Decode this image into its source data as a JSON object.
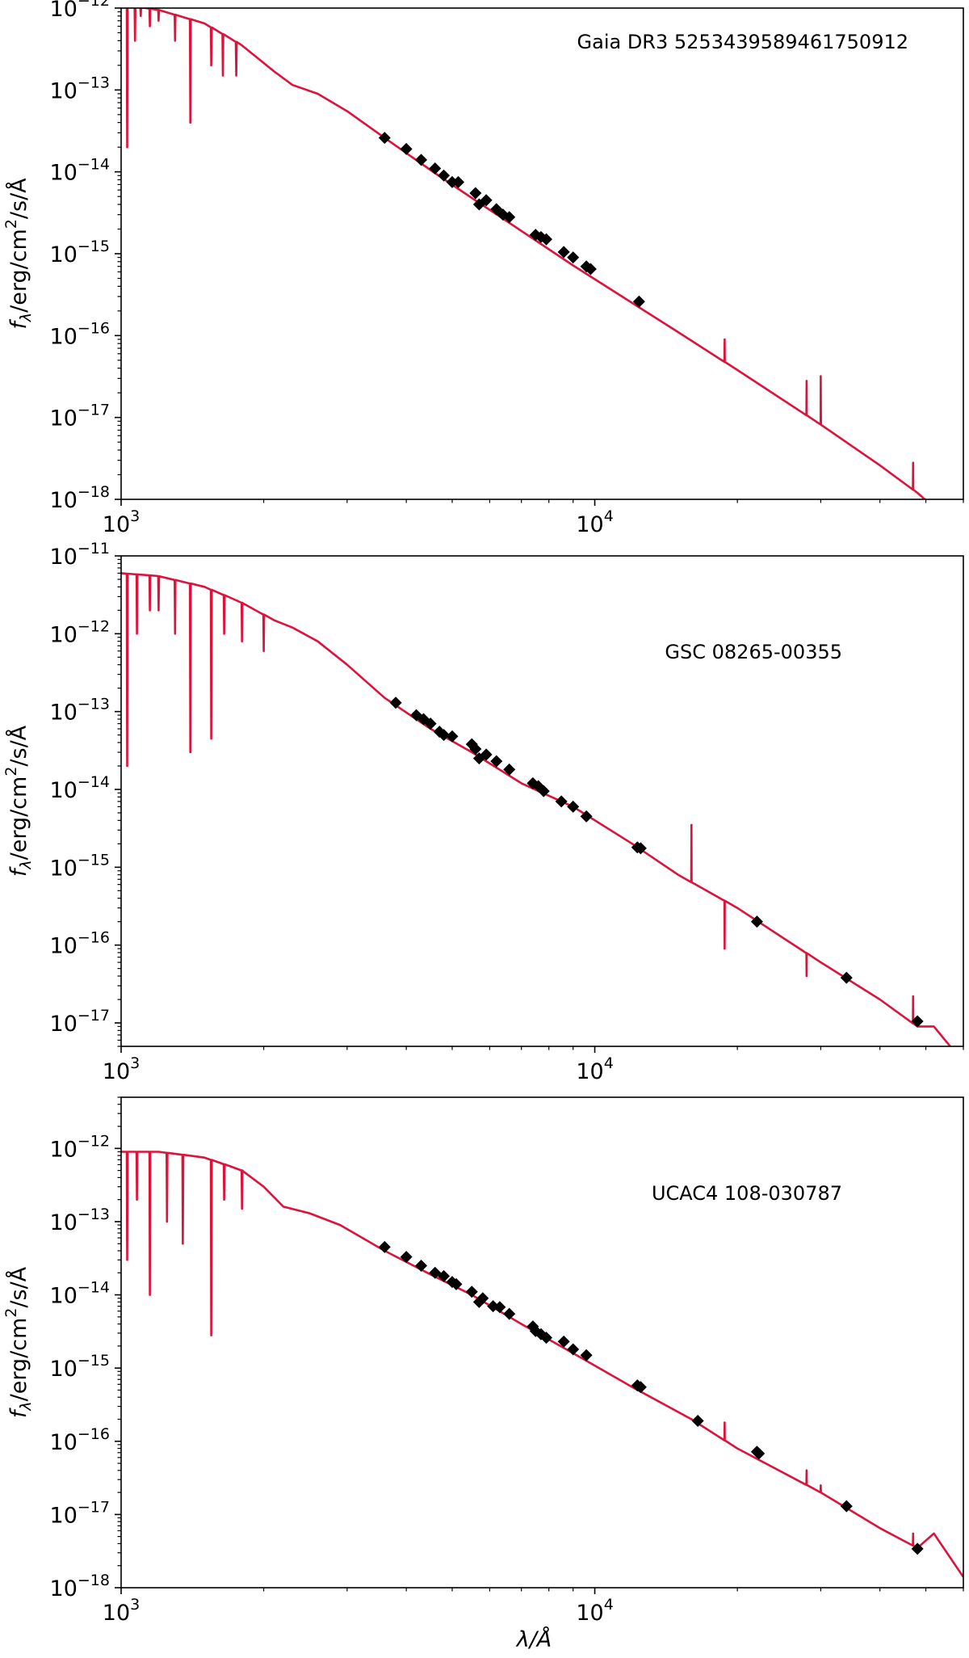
{
  "figure": {
    "xlabel": "λ/Å",
    "ylabel_base": "f",
    "ylabel_sub": "λ",
    "ylabel_pre": "/erg/cm",
    "ylabel_sup": "2",
    "ylabel_post": "/s/Å",
    "colors": {
      "model": "#dc143c",
      "points": "#000000",
      "axes": "#000000"
    }
  },
  "chart_data": [
    {
      "type": "line",
      "title": "Gaia DR3 5253439589461750912",
      "x_scale": "log",
      "y_scale": "log",
      "xlim": [
        1000,
        60000
      ],
      "ylim": [
        1e-18,
        1e-12
      ],
      "x_ticks": [
        {
          "value": 1000,
          "label": "10^3"
        },
        {
          "value": 10000,
          "label": "10^4"
        }
      ],
      "y_ticks": [
        {
          "value": 1e-12,
          "label": "10^-12"
        },
        {
          "value": 1e-13,
          "label": "10^-13"
        },
        {
          "value": 1e-14,
          "label": "10^-14"
        },
        {
          "value": 1e-15,
          "label": "10^-15"
        },
        {
          "value": 1e-16,
          "label": "10^-16"
        },
        {
          "value": 1e-17,
          "label": "10^-17"
        },
        {
          "value": 1e-18,
          "label": "10^-18"
        }
      ],
      "grid": false,
      "series": [
        {
          "kind": "model",
          "x": [
            1000,
            1200,
            1500,
            1800,
            2100,
            2300,
            2600,
            3000,
            3600,
            4500,
            5500,
            7000,
            9000,
            12000,
            15000,
            20000,
            30000,
            40000,
            48000,
            52000
          ],
          "y": [
            1.1e-12,
            9.5e-13,
            6.5e-13,
            3.5e-13,
            1.7e-13,
            1.15e-13,
            9e-14,
            5.5e-14,
            2.6e-14,
            1.05e-14,
            4.8e-15,
            1.9e-15,
            7.2e-16,
            2.5e-16,
            1.1e-16,
            3.8e-17,
            8.2e-18,
            2.6e-18,
            1.2e-18,
            8e-19
          ],
          "features": [
            {
              "x": 1030,
              "y": 2e-14
            },
            {
              "x": 1070,
              "y": 4e-13
            },
            {
              "x": 1100,
              "y": 8e-13
            },
            {
              "x": 1150,
              "y": 6e-13
            },
            {
              "x": 1200,
              "y": 7e-13
            },
            {
              "x": 1300,
              "y": 4e-13
            },
            {
              "x": 1400,
              "y": 4e-14
            },
            {
              "x": 1550,
              "y": 2e-13
            },
            {
              "x": 1640,
              "y": 1.5e-13
            },
            {
              "x": 1750,
              "y": 1.5e-13
            }
          ],
          "spikes": [
            {
              "x": 18800,
              "y": 9e-17
            },
            {
              "x": 28000,
              "y": 2.8e-17
            },
            {
              "x": 30000,
              "y": 3.2e-17
            },
            {
              "x": 47000,
              "y": 2.8e-18
            }
          ]
        },
        {
          "kind": "photometry",
          "x": [
            3600,
            4000,
            4300,
            4600,
            4800,
            5000,
            5150,
            5600,
            5700,
            5900,
            6200,
            6400,
            6600,
            7500,
            7700,
            7900,
            8600,
            9000,
            9600,
            9800,
            12400
          ],
          "y": [
            2.6e-14,
            1.9e-14,
            1.4e-14,
            1.1e-14,
            9e-15,
            7.5e-15,
            7.5e-15,
            5.5e-15,
            4e-15,
            4.5e-15,
            3.5e-15,
            3e-15,
            2.8e-15,
            1.7e-15,
            1.6e-15,
            1.5e-15,
            1.05e-15,
            9e-16,
            7e-16,
            6.5e-16,
            2.6e-16
          ]
        }
      ]
    },
    {
      "type": "line",
      "title": "GSC 08265-00355",
      "x_scale": "log",
      "y_scale": "log",
      "xlim": [
        1000,
        60000
      ],
      "ylim": [
        5e-18,
        1e-11
      ],
      "x_ticks": [
        {
          "value": 1000,
          "label": "10^3"
        },
        {
          "value": 10000,
          "label": "10^4"
        }
      ],
      "y_ticks": [
        {
          "value": 1e-11,
          "label": "10^-11"
        },
        {
          "value": 1e-12,
          "label": "10^-12"
        },
        {
          "value": 1e-13,
          "label": "10^-13"
        },
        {
          "value": 1e-14,
          "label": "10^-14"
        },
        {
          "value": 1e-15,
          "label": "10^-15"
        },
        {
          "value": 1e-16,
          "label": "10^-16"
        },
        {
          "value": 1e-17,
          "label": "10^-17"
        }
      ],
      "grid": false,
      "series": [
        {
          "kind": "model",
          "x": [
            1000,
            1200,
            1500,
            1800,
            2100,
            2300,
            2600,
            3000,
            3600,
            4500,
            5500,
            7000,
            9000,
            12000,
            15000,
            20000,
            30000,
            40000,
            48000,
            52000,
            58000
          ],
          "y": [
            6e-12,
            5.5e-12,
            4e-12,
            2.5e-12,
            1.5e-12,
            1.2e-12,
            8e-13,
            4e-13,
            1.5e-13,
            6e-14,
            3e-14,
            1.2e-14,
            6e-15,
            2e-15,
            8e-16,
            3e-16,
            6e-17,
            2e-17,
            9e-18,
            9e-18,
            4e-18
          ],
          "features": [
            {
              "x": 1030,
              "y": 2e-14
            },
            {
              "x": 1080,
              "y": 1e-12
            },
            {
              "x": 1150,
              "y": 2e-12
            },
            {
              "x": 1200,
              "y": 2e-12
            },
            {
              "x": 1300,
              "y": 1e-12
            },
            {
              "x": 1400,
              "y": 3e-14
            },
            {
              "x": 1550,
              "y": 4.5e-14
            },
            {
              "x": 1650,
              "y": 1e-12
            },
            {
              "x": 1800,
              "y": 8e-13
            },
            {
              "x": 2000,
              "y": 6e-13
            }
          ],
          "spikes": [
            {
              "x": 16000,
              "y": 3.5e-15
            },
            {
              "x": 18800,
              "y": 9e-17
            },
            {
              "x": 28000,
              "y": 4e-17
            },
            {
              "x": 47000,
              "y": 2.2e-17
            }
          ]
        },
        {
          "kind": "photometry",
          "x": [
            3800,
            4200,
            4350,
            4500,
            4700,
            4800,
            5000,
            5500,
            5600,
            5700,
            5900,
            6200,
            6600,
            7400,
            7600,
            7800,
            8500,
            9000,
            9600,
            12300,
            12500,
            22000,
            34000,
            48000
          ],
          "y": [
            1.3e-13,
            9e-14,
            8e-14,
            7e-14,
            5.5e-14,
            5e-14,
            4.8e-14,
            3.8e-14,
            3.3e-14,
            2.5e-14,
            2.8e-14,
            2.3e-14,
            1.8e-14,
            1.2e-14,
            1.1e-14,
            9.5e-15,
            7e-15,
            6e-15,
            4.5e-15,
            1.8e-15,
            1.75e-15,
            2e-16,
            3.8e-17,
            1.05e-17
          ]
        }
      ]
    },
    {
      "type": "line",
      "title": "UCAC4 108-030787",
      "x_scale": "log",
      "y_scale": "log",
      "xlim": [
        1000,
        60000
      ],
      "ylim": [
        1e-18,
        5e-12
      ],
      "x_ticks": [
        {
          "value": 1000,
          "label": "10^3"
        },
        {
          "value": 10000,
          "label": "10^4"
        }
      ],
      "y_ticks": [
        {
          "value": 1e-12,
          "label": "10^-12"
        },
        {
          "value": 1e-13,
          "label": "10^-13"
        },
        {
          "value": 1e-14,
          "label": "10^-14"
        },
        {
          "value": 1e-15,
          "label": "10^-15"
        },
        {
          "value": 1e-16,
          "label": "10^-16"
        },
        {
          "value": 1e-17,
          "label": "10^-17"
        },
        {
          "value": 1e-18,
          "label": "10^-18"
        }
      ],
      "grid": false,
      "series": [
        {
          "kind": "model",
          "x": [
            1000,
            1200,
            1500,
            1800,
            2000,
            2200,
            2500,
            2900,
            3600,
            4500,
            5500,
            7000,
            9000,
            12000,
            16000,
            20000,
            30000,
            40000,
            48000,
            52000,
            60000
          ],
          "y": [
            9e-13,
            9e-13,
            7.5e-13,
            5e-13,
            3e-13,
            1.6e-13,
            1.3e-13,
            9e-14,
            4e-14,
            1.9e-14,
            1e-14,
            4e-15,
            1.6e-15,
            5.5e-16,
            2e-16,
            8e-17,
            2e-17,
            6.5e-18,
            3.5e-18,
            5.5e-18,
            1.4e-18
          ],
          "features": [
            {
              "x": 1030,
              "y": 3e-14
            },
            {
              "x": 1080,
              "y": 2e-13
            },
            {
              "x": 1150,
              "y": 1e-14
            },
            {
              "x": 1250,
              "y": 1e-13
            },
            {
              "x": 1350,
              "y": 5e-14
            },
            {
              "x": 1550,
              "y": 2.8e-15
            },
            {
              "x": 1650,
              "y": 2e-13
            },
            {
              "x": 1800,
              "y": 1.5e-13
            }
          ],
          "spikes": [
            {
              "x": 18800,
              "y": 1.8e-16
            },
            {
              "x": 28000,
              "y": 4e-17
            },
            {
              "x": 30000,
              "y": 2.5e-17
            },
            {
              "x": 47000,
              "y": 5.5e-18
            }
          ]
        },
        {
          "kind": "photometry",
          "x": [
            3600,
            4000,
            4300,
            4600,
            4800,
            5000,
            5100,
            5500,
            5700,
            5800,
            6100,
            6300,
            6600,
            7400,
            7500,
            7700,
            7900,
            8600,
            9000,
            9600,
            12300,
            12500,
            16500,
            22000,
            22200,
            34000,
            48000
          ],
          "y": [
            4.5e-14,
            3.3e-14,
            2.5e-14,
            2e-14,
            1.8e-14,
            1.5e-14,
            1.4e-14,
            1.1e-14,
            8e-15,
            9e-15,
            7e-15,
            6.8e-15,
            5.5e-15,
            3.7e-15,
            3.2e-15,
            2.9e-15,
            2.6e-15,
            2.3e-15,
            1.8e-15,
            1.5e-15,
            5.8e-16,
            5.5e-16,
            1.9e-16,
            7.2e-17,
            6.8e-17,
            1.3e-17,
            3.4e-18
          ]
        }
      ]
    }
  ]
}
